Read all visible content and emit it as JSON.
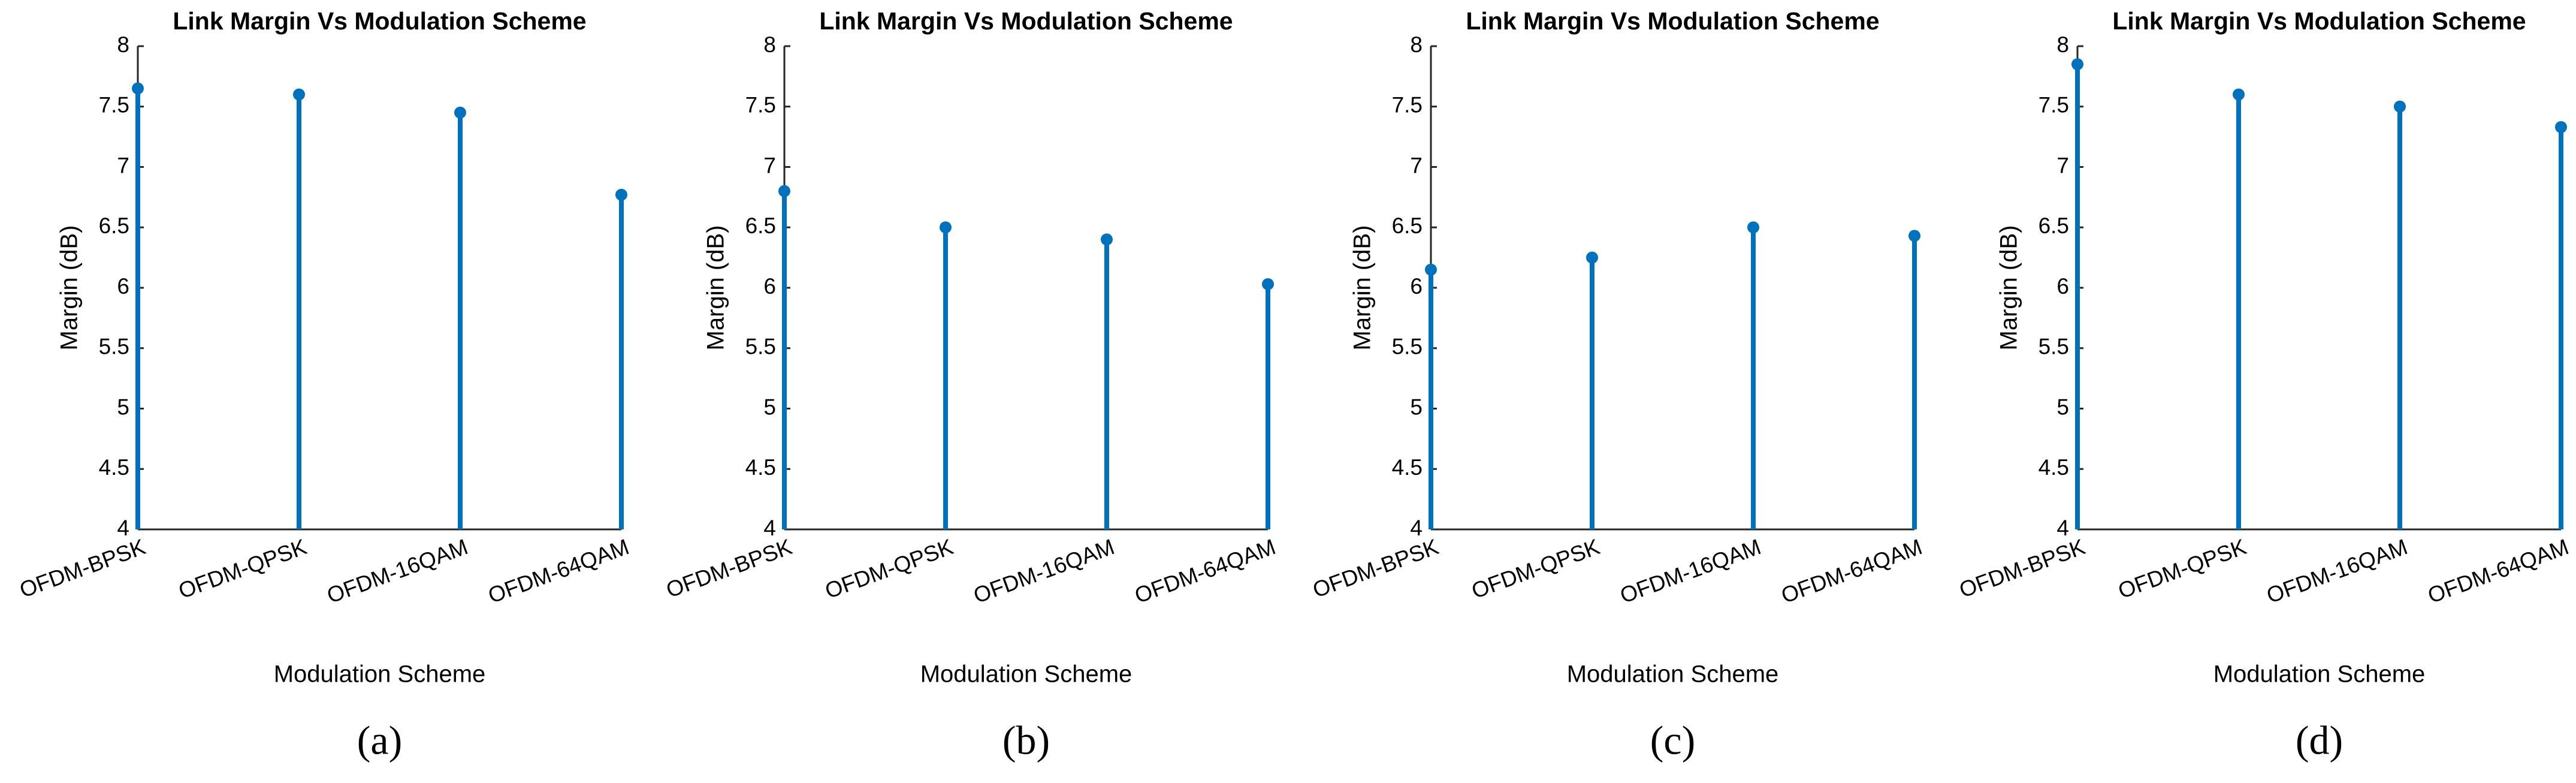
{
  "chart_data": [
    {
      "type": "stem",
      "title": "Link Margin Vs Modulation Scheme",
      "x_label": "Modulation Scheme",
      "y_label": "Margin (dB)",
      "caption": "(a)",
      "categories": [
        "OFDM-BPSK",
        "OFDM-QPSK",
        "OFDM-16QAM",
        "OFDM-64QAM"
      ],
      "values": [
        7.65,
        7.6,
        7.45,
        6.77
      ],
      "color": "#0072bd",
      "ylim": [
        4,
        8
      ],
      "yticks": [
        4,
        4.5,
        5,
        5.5,
        6,
        6.5,
        7,
        7.5,
        8
      ]
    },
    {
      "type": "stem",
      "title": "Link Margin Vs Modulation Scheme",
      "x_label": "Modulation Scheme",
      "y_label": "Margin (dB)",
      "caption": "(b)",
      "categories": [
        "OFDM-BPSK",
        "OFDM-QPSK",
        "OFDM-16QAM",
        "OFDM-64QAM"
      ],
      "values": [
        6.8,
        6.5,
        6.4,
        6.03
      ],
      "color": "#0072bd",
      "ylim": [
        4,
        8
      ],
      "yticks": [
        4,
        4.5,
        5,
        5.5,
        6,
        6.5,
        7,
        7.5,
        8
      ]
    },
    {
      "type": "stem",
      "title": "Link Margin Vs Modulation Scheme",
      "x_label": "Modulation Scheme",
      "y_label": "Margin (dB)",
      "caption": "(c)",
      "categories": [
        "OFDM-BPSK",
        "OFDM-QPSK",
        "OFDM-16QAM",
        "OFDM-64QAM"
      ],
      "values": [
        6.15,
        6.25,
        6.5,
        6.43
      ],
      "color": "#0072bd",
      "ylim": [
        4,
        8
      ],
      "yticks": [
        4,
        4.5,
        5,
        5.5,
        6,
        6.5,
        7,
        7.5,
        8
      ]
    },
    {
      "type": "stem",
      "title": "Link Margin Vs Modulation Scheme",
      "x_label": "Modulation Scheme",
      "y_label": "Margin (dB)",
      "caption": "(d)",
      "categories": [
        "OFDM-BPSK",
        "OFDM-QPSK",
        "OFDM-16QAM",
        "OFDM-64QAM"
      ],
      "values": [
        7.85,
        7.6,
        7.5,
        7.33
      ],
      "color": "#0072bd",
      "ylim": [
        4,
        8
      ],
      "yticks": [
        4,
        4.5,
        5,
        5.5,
        6,
        6.5,
        7,
        7.5,
        8
      ]
    }
  ]
}
